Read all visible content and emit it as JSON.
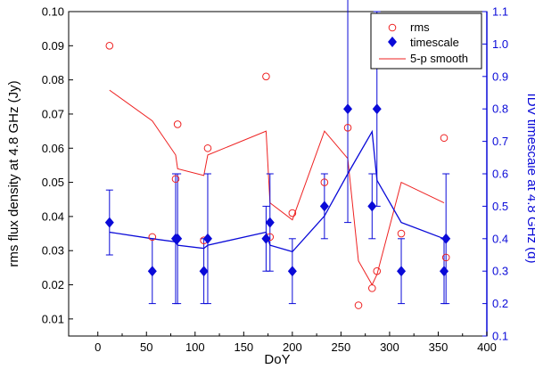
{
  "chart_data": {
    "type": "scatter",
    "xlabel": "DoY",
    "ylabel_left": "rms flux density at 4.8 GHz (Jy)",
    "ylabel_right": "IDV timescale at 4.8 GHz (d)",
    "xlim": [
      -30,
      400
    ],
    "ylim_left": [
      0.005,
      0.1
    ],
    "ylim_right": [
      0.1,
      1.1
    ],
    "x_ticks": [
      "0",
      "50",
      "100",
      "150",
      "200",
      "250",
      "300",
      "350",
      "400"
    ],
    "y_left_ticks": [
      "0.01",
      "0.02",
      "0.03",
      "0.04",
      "0.05",
      "0.06",
      "0.07",
      "0.08",
      "0.09",
      "0.10"
    ],
    "y_right_ticks": [
      "0.1",
      "0.2",
      "0.3",
      "0.4",
      "0.5",
      "0.6",
      "0.7",
      "0.8",
      "0.9",
      "1.0",
      "1.1"
    ],
    "colors": {
      "rms": "#ee2222",
      "timescale": "#0a0ad8",
      "smooth": "#ee2222",
      "right_axis": "#0a0ad8"
    },
    "legend": {
      "position": "top-right",
      "entries": [
        {
          "key": "rms",
          "label": "rms"
        },
        {
          "key": "timescale",
          "label": "timescale"
        },
        {
          "key": "smooth",
          "label": "5-p smooth"
        }
      ]
    },
    "series": [
      {
        "name": "rms",
        "axis": "left",
        "style": "open-circle",
        "x": [
          12,
          56,
          80,
          82,
          109,
          113,
          173,
          177,
          200,
          233,
          257,
          268,
          282,
          287,
          312,
          356,
          358
        ],
        "y": [
          0.09,
          0.034,
          0.051,
          0.067,
          0.033,
          0.06,
          0.081,
          0.034,
          0.041,
          0.05,
          0.066,
          0.014,
          0.019,
          0.024,
          0.035,
          0.063,
          0.028
        ]
      },
      {
        "name": "timescale",
        "axis": "right",
        "style": "filled-diamond",
        "x": [
          12,
          56,
          80,
          82,
          109,
          113,
          173,
          177,
          200,
          233,
          257,
          282,
          287,
          312,
          356,
          358
        ],
        "y": [
          0.45,
          0.3,
          0.4,
          0.4,
          0.3,
          0.4,
          0.4,
          0.45,
          0.3,
          0.5,
          0.8,
          0.5,
          0.8,
          0.3,
          0.3,
          0.4
        ],
        "err": [
          0.1,
          0.1,
          0.2,
          0.2,
          0.1,
          0.2,
          0.1,
          0.15,
          0.1,
          0.1,
          0.35,
          0.1,
          0.3,
          0.1,
          0.1,
          0.2
        ]
      },
      {
        "name": "5-p smooth (rms)",
        "axis": "left",
        "style": "line",
        "x": [
          12,
          56,
          80,
          82,
          109,
          113,
          173,
          177,
          200,
          233,
          257,
          268,
          282,
          287,
          312,
          356
        ],
        "y": [
          0.077,
          0.068,
          0.058,
          0.054,
          0.052,
          0.058,
          0.065,
          0.044,
          0.039,
          0.065,
          0.057,
          0.027,
          0.02,
          0.023,
          0.05,
          0.044
        ]
      },
      {
        "name": "5-p smooth (timescale)",
        "axis": "right",
        "style": "line",
        "x": [
          12,
          56,
          80,
          82,
          109,
          113,
          173,
          177,
          200,
          233,
          257,
          282,
          287,
          312,
          356
        ],
        "y": [
          0.42,
          0.4,
          0.39,
          0.38,
          0.37,
          0.38,
          0.42,
          0.38,
          0.36,
          0.47,
          0.6,
          0.73,
          0.58,
          0.45,
          0.4
        ]
      }
    ]
  }
}
